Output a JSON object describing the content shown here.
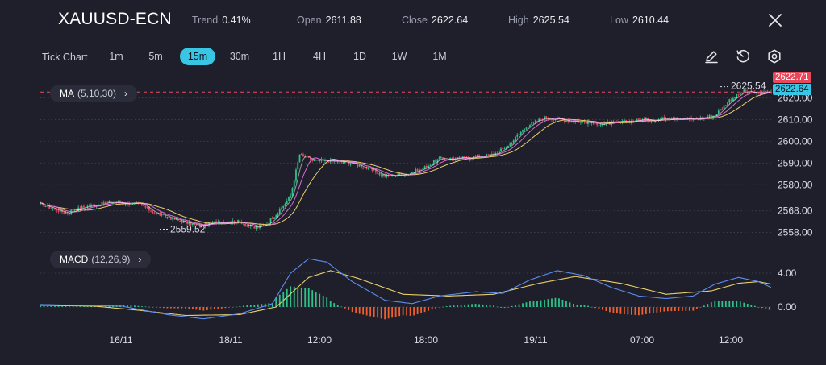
{
  "header": {
    "symbol": "XAUUSD-ECN",
    "trend_label": "Trend",
    "trend_value": "0.41%",
    "open_label": "Open",
    "open_value": "2611.88",
    "close_label": "Close",
    "close_value": "2622.64",
    "high_label": "High",
    "high_value": "2625.54",
    "low_label": "Low",
    "low_value": "2610.44",
    "close_icon": "close-icon"
  },
  "toolbar": {
    "tick_chart": "Tick Chart",
    "timeframes": [
      "1m",
      "5m",
      "15m",
      "30m",
      "1H",
      "4H",
      "1D",
      "1W",
      "1M"
    ],
    "active_timeframe": "15m",
    "icons": [
      "pencil-icon",
      "timer-reset-icon",
      "settings-icon"
    ]
  },
  "indicators": {
    "ma_name": "MA",
    "ma_params": "(5,10,30)",
    "macd_name": "MACD",
    "macd_params": "(12,26,9)"
  },
  "price_axis": {
    "ticks": [
      "2558.00",
      "2568.00",
      "2580.00",
      "2590.00",
      "2600.00",
      "2610.00",
      "2620.00"
    ],
    "current_price": "2622.64",
    "ask_price": "2622.71"
  },
  "annotations": {
    "high_marker": "2625.54",
    "low_marker": "2559.52"
  },
  "macd_axis": {
    "ticks": [
      "4.00",
      "0.00"
    ]
  },
  "time_axis": {
    "labels": [
      "16/11",
      "18/11",
      "12:00",
      "18:00",
      "19/11",
      "07:00",
      "12:00"
    ]
  },
  "colors": {
    "background": "#1e1f2a",
    "up": "#2ec28a",
    "down": "#e8485a",
    "ma_fast": "#ffffff",
    "ma_mid": "#d46bd8",
    "ma_slow": "#e9cf6a",
    "macd_line": "#5b8def",
    "signal_line": "#e9cf6a",
    "hist_pos": "#2ec28a",
    "hist_neg": "#f0602c",
    "accent": "#39c6e4"
  },
  "chart_data": [
    {
      "type": "candlestick",
      "ylim": [
        2553,
        2628
      ],
      "candle_close_path": [
        [
          0,
          2571
        ],
        [
          14,
          2567
        ],
        [
          25,
          2570
        ],
        [
          40,
          2572
        ],
        [
          55,
          2571
        ],
        [
          63,
          2567
        ],
        [
          78,
          2563
        ],
        [
          88,
          2561
        ],
        [
          98,
          2563
        ],
        [
          110,
          2563
        ],
        [
          118,
          2560
        ],
        [
          125,
          2562
        ],
        [
          128,
          2565
        ],
        [
          132,
          2568
        ],
        [
          138,
          2575
        ],
        [
          143,
          2594
        ],
        [
          150,
          2591
        ],
        [
          160,
          2591
        ],
        [
          172,
          2590
        ],
        [
          182,
          2587
        ],
        [
          190,
          2584
        ],
        [
          202,
          2585
        ],
        [
          210,
          2587
        ],
        [
          220,
          2592
        ],
        [
          230,
          2592
        ],
        [
          240,
          2593
        ],
        [
          250,
          2594
        ],
        [
          258,
          2598
        ],
        [
          268,
          2607
        ],
        [
          278,
          2611
        ],
        [
          288,
          2610
        ],
        [
          298,
          2609
        ],
        [
          310,
          2608
        ],
        [
          322,
          2609
        ],
        [
          332,
          2610
        ],
        [
          340,
          2610
        ],
        [
          348,
          2611
        ],
        [
          360,
          2610
        ],
        [
          372,
          2612
        ],
        [
          380,
          2619
        ],
        [
          388,
          2623
        ],
        [
          396,
          2622
        ],
        [
          403,
          2623
        ]
      ],
      "high": 2625.54,
      "low": 2559.52,
      "last_close": 2622.64
    },
    {
      "type": "histogram",
      "ylim": [
        -2,
        7
      ],
      "macd_line": [
        [
          0,
          0.3
        ],
        [
          20,
          0.2
        ],
        [
          45,
          0.1
        ],
        [
          70,
          -0.9
        ],
        [
          90,
          -1.4
        ],
        [
          110,
          -0.8
        ],
        [
          128,
          0.4
        ],
        [
          138,
          4.0
        ],
        [
          148,
          5.7
        ],
        [
          158,
          5.3
        ],
        [
          172,
          3.0
        ],
        [
          190,
          0.8
        ],
        [
          205,
          0.4
        ],
        [
          220,
          1.3
        ],
        [
          240,
          1.8
        ],
        [
          255,
          1.6
        ],
        [
          270,
          3.2
        ],
        [
          285,
          4.3
        ],
        [
          300,
          3.7
        ],
        [
          315,
          2.3
        ],
        [
          330,
          1.3
        ],
        [
          345,
          1.0
        ],
        [
          360,
          1.3
        ],
        [
          372,
          2.7
        ],
        [
          385,
          3.5
        ],
        [
          396,
          3.0
        ],
        [
          403,
          2.3
        ]
      ],
      "signal_line": [
        [
          0,
          0.2
        ],
        [
          30,
          0.1
        ],
        [
          55,
          -0.4
        ],
        [
          80,
          -1.0
        ],
        [
          110,
          -0.9
        ],
        [
          130,
          0.0
        ],
        [
          148,
          3.5
        ],
        [
          160,
          4.3
        ],
        [
          175,
          3.4
        ],
        [
          200,
          1.5
        ],
        [
          225,
          1.3
        ],
        [
          250,
          1.5
        ],
        [
          275,
          2.8
        ],
        [
          295,
          3.6
        ],
        [
          320,
          2.8
        ],
        [
          345,
          1.5
        ],
        [
          370,
          1.9
        ],
        [
          385,
          2.8
        ],
        [
          396,
          3.0
        ],
        [
          403,
          2.7
        ]
      ]
    }
  ]
}
